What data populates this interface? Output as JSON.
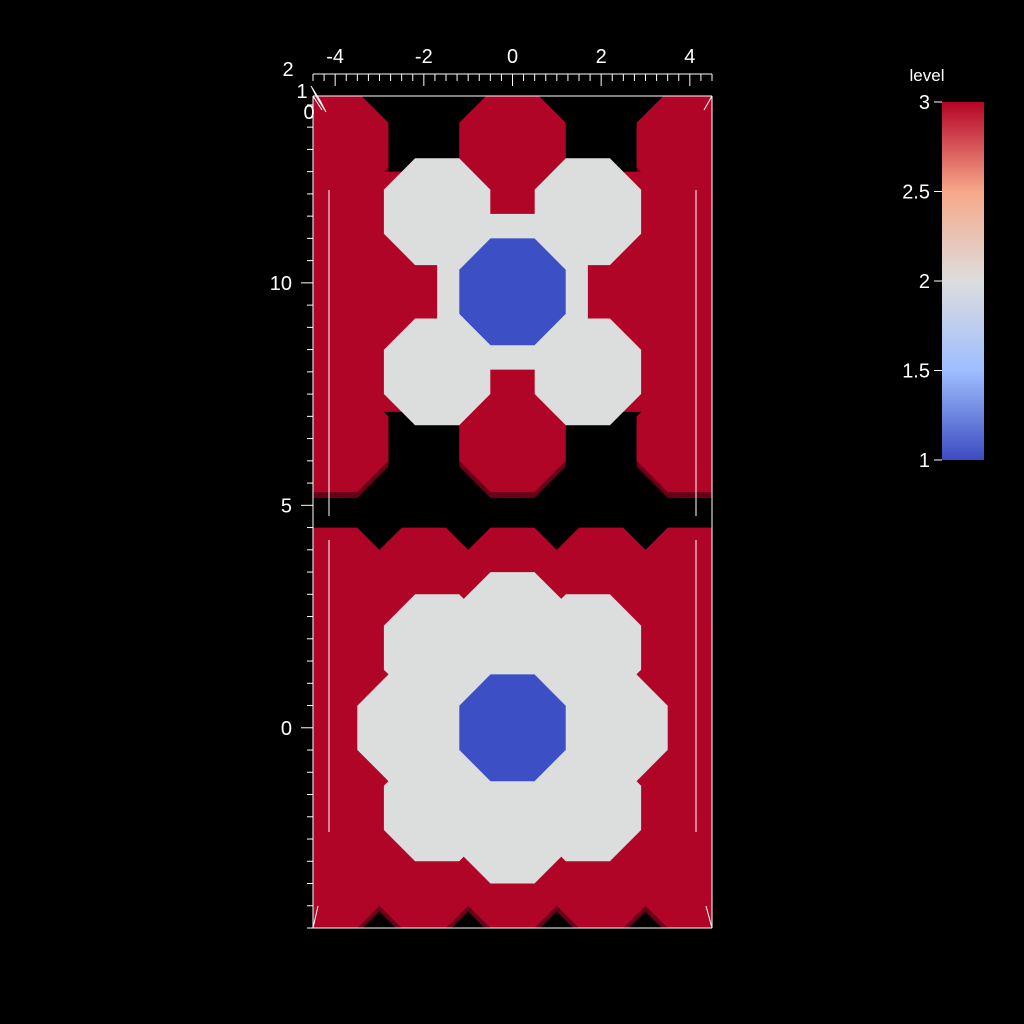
{
  "chart_data": {
    "type": "heatmap",
    "title": "",
    "xlabel": "",
    "ylabel": "",
    "xlim": [
      -4.5,
      4.5
    ],
    "ylim": [
      -4.5,
      14.2
    ],
    "x_ticks": [
      -4,
      -2,
      0,
      2,
      4
    ],
    "y_ticks": [
      0,
      5,
      10
    ],
    "z_ticks": [
      0,
      1,
      2
    ],
    "grid": false,
    "colorbar": {
      "title": "level",
      "min": 1,
      "max": 3,
      "ticks": [
        "3",
        "2.5",
        "2",
        "1.5",
        "1"
      ],
      "colormap": "coolwarm",
      "stops": [
        "#b40426",
        "#f7a889",
        "#dddddd",
        "#9ebeff",
        "#3b4cc0"
      ]
    },
    "colors": {
      "level_1": "#3d4fc4",
      "level_2": "#dcdddd",
      "level_3": "#b10528",
      "level_3_shadow": "#6a0016",
      "background": "#000000",
      "axes": "#ffffff"
    },
    "cells": {
      "octagon_size": 2.4,
      "outer_level": 3,
      "ring_level": 2,
      "center_level": 1,
      "blocks": [
        {
          "name": "lower block",
          "center": [
            0,
            0
          ],
          "outer": [
            [
              -4.0,
              3.3
            ],
            [
              -2.0,
              3.3
            ],
            [
              0.0,
              3.3
            ],
            [
              2.0,
              3.3
            ],
            [
              4.0,
              3.3
            ],
            [
              -4.0,
              0.0
            ],
            [
              4.0,
              0.0
            ],
            [
              -4.0,
              -3.3
            ],
            [
              -2.0,
              -3.3
            ],
            [
              0.0,
              -3.3
            ],
            [
              2.0,
              -3.3
            ],
            [
              4.0,
              -3.3
            ]
          ],
          "ring": [
            [
              -1.7,
              1.8
            ],
            [
              0.0,
              2.3
            ],
            [
              1.7,
              1.8
            ],
            [
              -2.3,
              0.0
            ],
            [
              2.3,
              0.0
            ],
            [
              -1.7,
              -1.8
            ],
            [
              0.0,
              -2.3
            ],
            [
              1.7,
              -1.8
            ]
          ],
          "core": [
            [
              0.0,
              0.0
            ]
          ]
        },
        {
          "name": "upper block",
          "center": [
            0,
            9.8
          ],
          "outer": [
            [
              -4.0,
              13.1
            ],
            [
              0.0,
              13.1
            ],
            [
              4.0,
              13.1
            ],
            [
              -4.0,
              9.8
            ],
            [
              4.0,
              9.8
            ],
            [
              -4.0,
              6.5
            ],
            [
              0.0,
              6.5
            ],
            [
              4.0,
              6.5
            ]
          ],
          "ring": [
            [
              -1.7,
              11.6
            ],
            [
              1.7,
              11.6
            ],
            [
              -1.7,
              8.0
            ],
            [
              1.7,
              8.0
            ]
          ],
          "core": [
            [
              0.0,
              9.8
            ]
          ]
        }
      ]
    }
  }
}
